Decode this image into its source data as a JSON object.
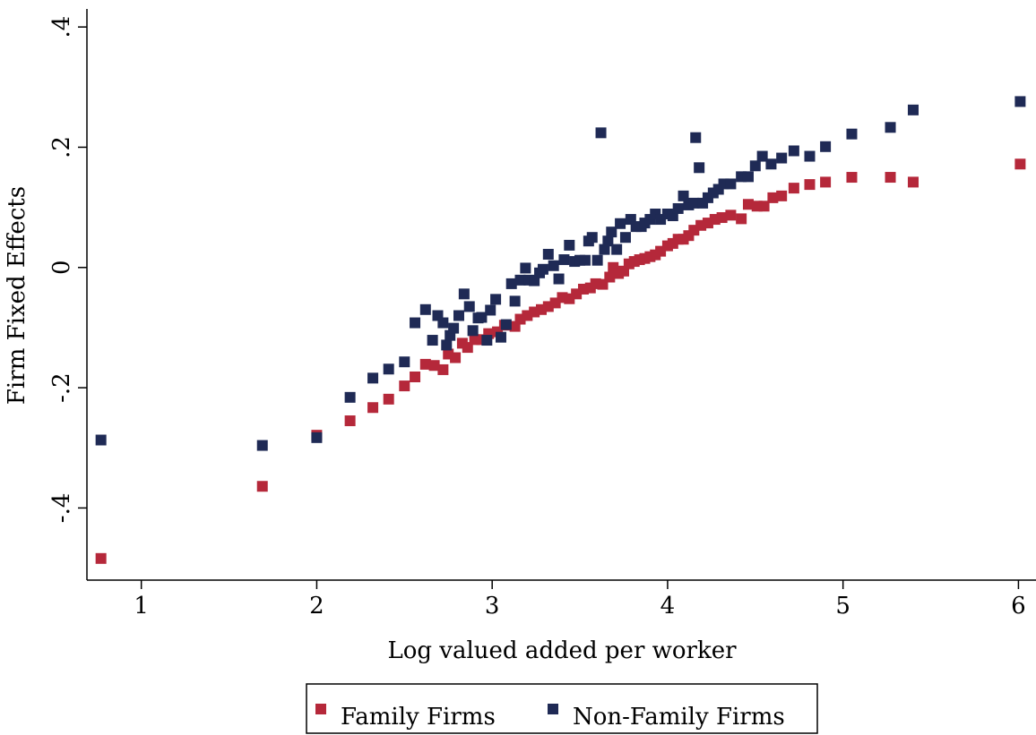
{
  "chart_data": {
    "type": "scatter",
    "x_label": "Log valued added per worker",
    "y_label": "Firm Fixed Effects",
    "xlim": [
      0.69,
      6.1
    ],
    "ylim": [
      -0.52,
      0.43
    ],
    "xticks": [
      1,
      2,
      3,
      4,
      5,
      6
    ],
    "yticks": [
      {
        "value": -0.4,
        "label": "-.4"
      },
      {
        "value": -0.2,
        "label": "-.2"
      },
      0,
      {
        "value": 0.2,
        "label": ".2"
      },
      {
        "value": 0.4,
        "label": ".4"
      }
    ],
    "grid": false,
    "legend": "bottom",
    "series": [
      {
        "name": "Family Firms",
        "color": "#b5283a",
        "x": [
          0.77,
          1.69,
          2.0,
          2.19,
          2.32,
          2.41,
          2.5,
          2.56,
          2.62,
          2.67,
          2.72,
          2.75,
          2.79,
          2.83,
          2.86,
          2.9,
          2.94,
          2.98,
          3.03,
          3.07,
          3.13,
          3.16,
          3.2,
          3.24,
          3.28,
          3.32,
          3.36,
          3.4,
          3.44,
          3.48,
          3.52,
          3.56,
          3.59,
          3.63,
          3.67,
          3.69,
          3.72,
          3.75,
          3.78,
          3.81,
          3.84,
          3.87,
          3.9,
          3.93,
          3.96,
          4.0,
          4.03,
          4.06,
          4.09,
          4.12,
          4.15,
          4.19,
          4.23,
          4.27,
          4.31,
          4.36,
          4.42,
          4.46,
          4.51,
          4.55,
          4.6,
          4.65,
          4.72,
          4.81,
          4.9,
          5.05,
          5.27,
          5.4,
          6.01
        ],
        "values": [
          -0.484,
          -0.364,
          -0.279,
          -0.255,
          -0.233,
          -0.219,
          -0.197,
          -0.182,
          -0.161,
          -0.163,
          -0.17,
          -0.144,
          -0.15,
          -0.126,
          -0.133,
          -0.12,
          -0.12,
          -0.11,
          -0.107,
          -0.096,
          -0.098,
          -0.086,
          -0.08,
          -0.074,
          -0.07,
          -0.065,
          -0.059,
          -0.05,
          -0.052,
          -0.044,
          -0.036,
          -0.034,
          -0.027,
          -0.028,
          -0.016,
          0.0,
          -0.01,
          -0.006,
          0.006,
          0.01,
          0.013,
          0.015,
          0.018,
          0.021,
          0.027,
          0.036,
          0.04,
          0.047,
          0.047,
          0.053,
          0.062,
          0.07,
          0.074,
          0.08,
          0.083,
          0.087,
          0.081,
          0.105,
          0.102,
          0.102,
          0.116,
          0.119,
          0.132,
          0.138,
          0.142,
          0.15,
          0.15,
          0.142,
          0.172
        ]
      },
      {
        "name": "Non-Family Firms",
        "color": "#1f2a55",
        "x": [
          0.77,
          1.69,
          2.0,
          2.19,
          2.32,
          2.41,
          2.5,
          2.56,
          2.62,
          2.66,
          2.69,
          2.72,
          2.74,
          2.76,
          2.78,
          2.81,
          2.84,
          2.87,
          2.89,
          2.92,
          2.94,
          2.97,
          2.99,
          3.02,
          3.05,
          3.08,
          3.11,
          3.13,
          3.16,
          3.19,
          3.21,
          3.24,
          3.27,
          3.29,
          3.32,
          3.35,
          3.38,
          3.41,
          3.44,
          3.47,
          3.5,
          3.53,
          3.55,
          3.57,
          3.6,
          3.62,
          3.64,
          3.66,
          3.68,
          3.71,
          3.73,
          3.76,
          3.79,
          3.82,
          3.85,
          3.87,
          3.9,
          3.93,
          3.96,
          4.0,
          4.03,
          4.06,
          4.09,
          4.12,
          4.15,
          4.16,
          4.18,
          4.2,
          4.23,
          4.26,
          4.29,
          4.32,
          4.36,
          4.42,
          4.46,
          4.5,
          4.54,
          4.59,
          4.65,
          4.72,
          4.81,
          4.9,
          5.05,
          5.27,
          5.4,
          6.01
        ],
        "values": [
          -0.287,
          -0.296,
          -0.283,
          -0.216,
          -0.184,
          -0.169,
          -0.157,
          -0.092,
          -0.07,
          -0.121,
          -0.08,
          -0.092,
          -0.129,
          -0.113,
          -0.101,
          -0.08,
          -0.044,
          -0.065,
          -0.105,
          -0.084,
          -0.083,
          -0.121,
          -0.071,
          -0.053,
          -0.116,
          -0.095,
          -0.027,
          -0.056,
          -0.021,
          -0.001,
          -0.021,
          -0.022,
          -0.009,
          -0.003,
          0.022,
          0.003,
          -0.019,
          0.013,
          0.037,
          0.01,
          0.012,
          0.012,
          0.044,
          0.05,
          0.012,
          0.224,
          0.03,
          0.044,
          0.059,
          0.03,
          0.073,
          0.05,
          0.08,
          0.068,
          0.068,
          0.074,
          0.08,
          0.089,
          0.08,
          0.089,
          0.086,
          0.098,
          0.119,
          0.104,
          0.107,
          0.216,
          0.166,
          0.107,
          0.116,
          0.124,
          0.13,
          0.139,
          0.139,
          0.151,
          0.151,
          0.169,
          0.185,
          0.172,
          0.182,
          0.194,
          0.185,
          0.201,
          0.222,
          0.233,
          0.262,
          0.276
        ]
      }
    ]
  }
}
